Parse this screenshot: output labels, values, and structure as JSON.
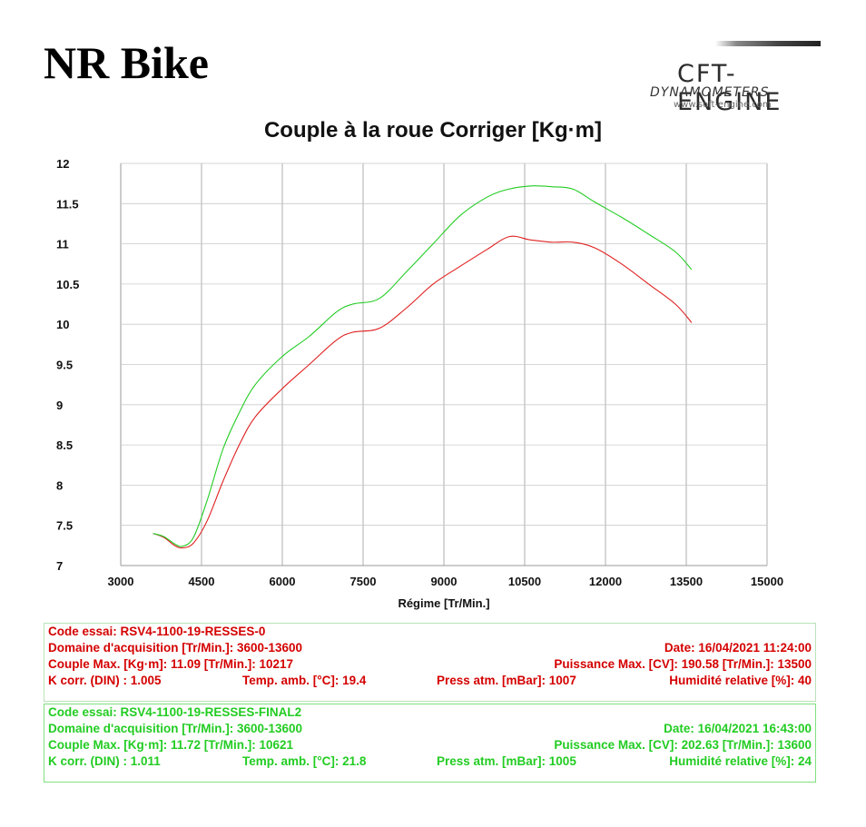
{
  "header": {
    "title": "NR Bike",
    "logo": {
      "main": "CFT-ENGINE",
      "sub": "DYNAMOMETERS",
      "url": "www.soft-engine.com"
    }
  },
  "chart_data": {
    "type": "line",
    "title": "Couple à la roue Corriger [Kg·m]",
    "xlabel": "Régime [Tr/Min.]",
    "ylabel": "",
    "xlim": [
      3000,
      15000
    ],
    "ylim": [
      7,
      12
    ],
    "xticks": [
      "3000",
      "4500",
      "6000",
      "7500",
      "9000",
      "10500",
      "12000",
      "13500",
      "15000"
    ],
    "yticks": [
      "7",
      "7.5",
      "8",
      "8.5",
      "9",
      "9.5",
      "10",
      "10.5",
      "11",
      "11.5",
      "12"
    ],
    "grid": true,
    "series": [
      {
        "color": "#e02020",
        "x": [
          3600,
          3800,
          4000,
          4150,
          4350,
          4600,
          4900,
          5200,
          5500,
          6000,
          6500,
          7000,
          7300,
          7800,
          8300,
          8800,
          9300,
          9800,
          10217,
          10600,
          11000,
          11400,
          11800,
          12300,
          12800,
          13300,
          13600
        ],
        "y": [
          7.4,
          7.35,
          7.25,
          7.22,
          7.28,
          7.55,
          8.05,
          8.5,
          8.85,
          9.2,
          9.5,
          9.8,
          9.9,
          9.95,
          10.2,
          10.5,
          10.72,
          10.93,
          11.09,
          11.05,
          11.02,
          11.02,
          10.95,
          10.75,
          10.5,
          10.25,
          10.02
        ]
      },
      {
        "color": "#22cc22",
        "x": [
          3600,
          3800,
          4000,
          4150,
          4350,
          4600,
          4900,
          5200,
          5500,
          6000,
          6500,
          7000,
          7300,
          7800,
          8300,
          8800,
          9300,
          9800,
          10200,
          10621,
          11000,
          11400,
          11800,
          12300,
          12800,
          13300,
          13600
        ],
        "y": [
          7.4,
          7.36,
          7.27,
          7.24,
          7.35,
          7.8,
          8.45,
          8.9,
          9.25,
          9.6,
          9.85,
          10.15,
          10.25,
          10.32,
          10.65,
          11.0,
          11.35,
          11.58,
          11.68,
          11.72,
          11.71,
          11.68,
          11.52,
          11.33,
          11.12,
          10.9,
          10.68
        ]
      }
    ]
  },
  "runs": [
    {
      "code": "Code essai: RSV4-1100-19-RESSES-0",
      "domain": "Domaine d'acquisition [Tr/Min.]: 3600-13600",
      "date": "Date: 16/04/2021   11:24:00",
      "couple_max": "Couple Max. [Kg·m]: 11.09   [Tr/Min.]: 10217",
      "puissance_max": "Puissance Max. [CV]: 190.58   [Tr/Min.]: 13500",
      "k_corr": "K corr. (DIN) : 1.005",
      "temp": "Temp. amb. [°C]: 19.4",
      "press": "Press atm. [mBar]: 1007",
      "humid": "Humidité relative [%]: 40"
    },
    {
      "code": "Code essai: RSV4-1100-19-RESSES-FINAL2",
      "domain": "Domaine d'acquisition [Tr/Min.]: 3600-13600",
      "date": "Date: 16/04/2021   16:43:00",
      "couple_max": "Couple Max. [Kg·m]: 11.72   [Tr/Min.]: 10621",
      "puissance_max": "Puissance Max. [CV]: 202.63   [Tr/Min.]: 13600",
      "k_corr": "K corr. (DIN) : 1.011",
      "temp": "Temp. amb. [°C]: 21.8",
      "press": "Press atm. [mBar]: 1005",
      "humid": "Humidité relative [%]: 24"
    }
  ]
}
